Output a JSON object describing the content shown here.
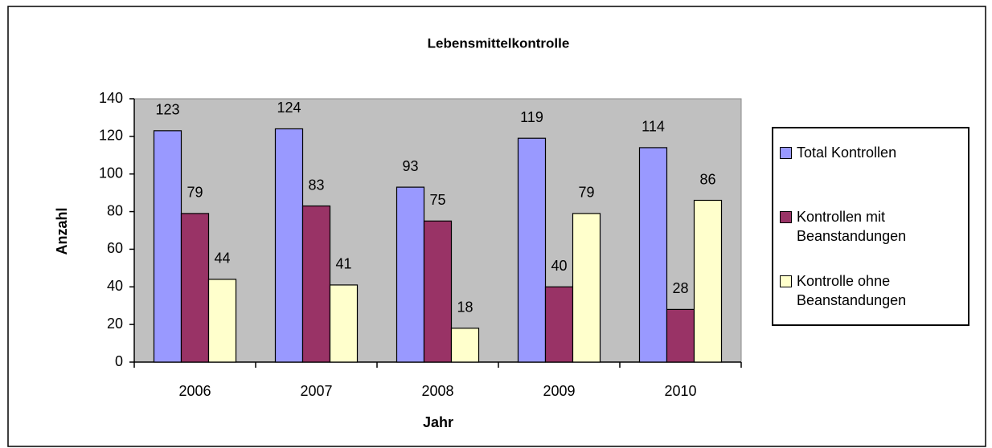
{
  "chart_data": {
    "type": "bar",
    "title": "Lebensmittelkontrolle",
    "x_label": "Jahr",
    "y_label": "Anzahl",
    "categories": [
      "2006",
      "2007",
      "2008",
      "2009",
      "2010"
    ],
    "series": [
      {
        "name": "Total Kontrollen",
        "color": "#9999ff",
        "values": [
          123,
          124,
          93,
          119,
          114
        ]
      },
      {
        "name": "Kontrollen mit Beanstandungen",
        "color": "#993366",
        "values": [
          79,
          83,
          75,
          40,
          28
        ]
      },
      {
        "name": "Kontrolle ohne Beanstandungen",
        "color": "#ffffcc",
        "values": [
          44,
          41,
          18,
          79,
          86
        ]
      }
    ],
    "ylim": [
      0,
      140
    ],
    "yticks": [
      0,
      20,
      40,
      60,
      80,
      100,
      120,
      140
    ],
    "legend": "right",
    "plot_background": "#c0c0c0"
  }
}
